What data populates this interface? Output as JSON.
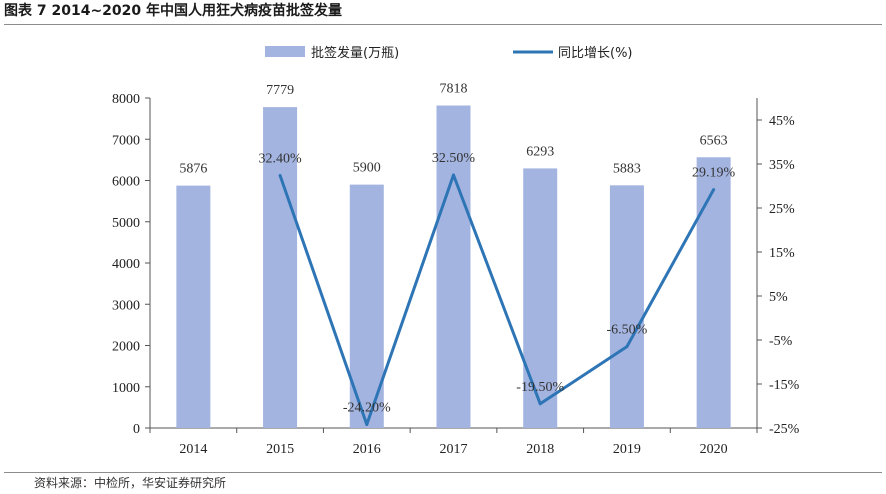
{
  "title": "图表 7 2014~2020 年中国人用狂犬病疫苗批签发量",
  "source": "资料来源：中检所，华安证券研究所",
  "colors": {
    "bar": "#a3b4e0",
    "line": "#2e75b6",
    "axis": "#555555"
  },
  "chart_data": {
    "type": "bar+line",
    "categories": [
      "2014",
      "2015",
      "2016",
      "2017",
      "2018",
      "2019",
      "2020"
    ],
    "series": [
      {
        "name": "批签发量(万瓶)",
        "type": "bar",
        "axis": "left",
        "values": [
          5876,
          7779,
          5900,
          7818,
          6293,
          5883,
          6563
        ],
        "labels": [
          "5876",
          "7779",
          "5900",
          "7818",
          "6293",
          "5883",
          "6563"
        ]
      },
      {
        "name": "同比增长(%)",
        "type": "line",
        "axis": "right",
        "values": [
          null,
          32.4,
          -24.2,
          32.5,
          -19.5,
          -6.5,
          29.19
        ],
        "labels": [
          "",
          "32.40%",
          "-24.20%",
          "32.50%",
          "-19.50%",
          "-6.50%",
          "29.19%"
        ]
      }
    ],
    "y_left": {
      "min": 0,
      "max": 8000,
      "ticks": [
        "0",
        "1000",
        "2000",
        "3000",
        "4000",
        "5000",
        "6000",
        "7000",
        "8000"
      ]
    },
    "y_right": {
      "min": -25,
      "max": 50,
      "tick_values": [
        -25,
        -15,
        -5,
        5,
        15,
        25,
        35,
        45
      ],
      "ticks": [
        "-25%",
        "-15%",
        "-5%",
        "5%",
        "15%",
        "25%",
        "35%",
        "45%"
      ]
    },
    "legend_position": "top-center",
    "grid": false
  }
}
